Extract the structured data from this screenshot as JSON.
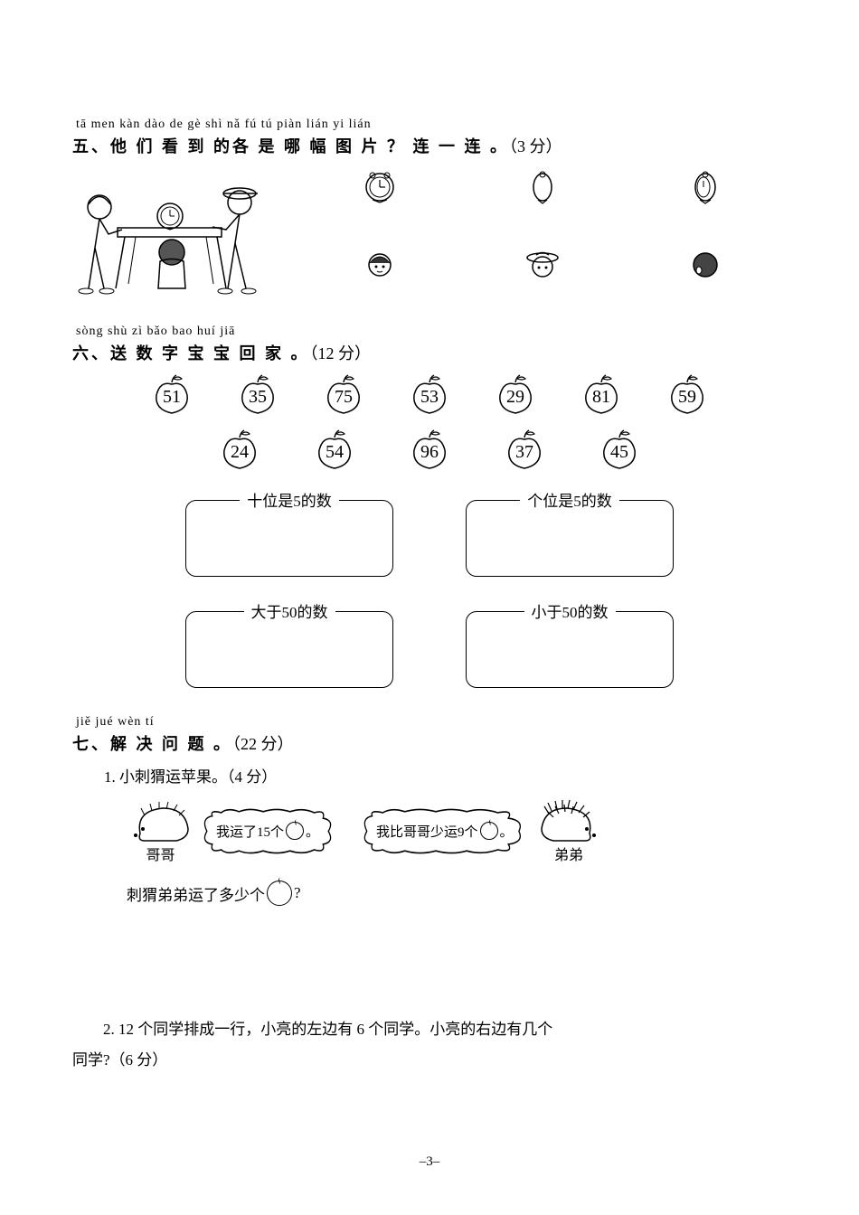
{
  "section5": {
    "pinyin": "tā men kàn dào de gè shì nǎ fú tú piàn    lián yi lián",
    "title": "五、他 们 看 到 的各 是 哪 幅 图 片 ？ 连 一 连 。",
    "points": "（3 分）",
    "clock_icons": [
      "clock-front",
      "clock-left",
      "clock-right"
    ],
    "head_icons": [
      "head-1",
      "head-2",
      "head-3"
    ]
  },
  "section6": {
    "pinyin": "sòng shù zì bǎo bao huí jiā",
    "title": "六、送 数 字 宝 宝 回 家 。",
    "points": "（12 分）",
    "row1": [
      "51",
      "35",
      "75",
      "53",
      "29",
      "81",
      "59"
    ],
    "row2": [
      "24",
      "54",
      "96",
      "37",
      "45"
    ],
    "box_labels": {
      "tens5": "十位是5的数",
      "ones5": "个位是5的数",
      "gt50": "大于50的数",
      "lt50": "小于50的数"
    }
  },
  "section7": {
    "pinyin": "jiě jué wèn tí",
    "title": "七、解 决 问 题 。",
    "points": "（22 分）",
    "q1": {
      "title": "1. 小刺猬运苹果。（4 分）",
      "speech1_a": "我运了15个",
      "speech1_b": "。",
      "label1": "哥哥",
      "speech2_a": "我比哥哥少运9个",
      "speech2_b": "。",
      "label2": "弟弟",
      "question_a": "刺猬弟弟运了多少个",
      "question_b": "?"
    },
    "q2": {
      "line1": "2.  12 个同学排成一行，小亮的左边有 6 个同学。小亮的右边有几个",
      "line2": "同学?（6 分）"
    }
  },
  "page_number": "–3–"
}
